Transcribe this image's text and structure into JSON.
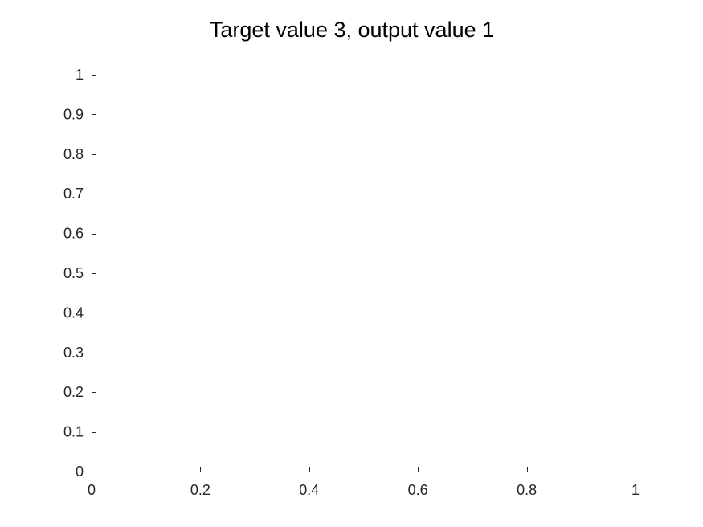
{
  "chart_data": {
    "type": "line",
    "title": "Target value 3, output value 1",
    "xlabel": "",
    "ylabel": "",
    "xlim": [
      0,
      1
    ],
    "ylim": [
      0,
      1
    ],
    "xticks": [
      "0",
      "0.2",
      "0.4",
      "0.6",
      "0.8",
      "1"
    ],
    "yticks": [
      "0",
      "0.1",
      "0.2",
      "0.3",
      "0.4",
      "0.5",
      "0.6",
      "0.7",
      "0.8",
      "0.9",
      "1"
    ],
    "grid": false,
    "box": false,
    "series": []
  },
  "colors": {
    "axis": "#262626",
    "title": "#000000",
    "background": "#ffffff"
  }
}
